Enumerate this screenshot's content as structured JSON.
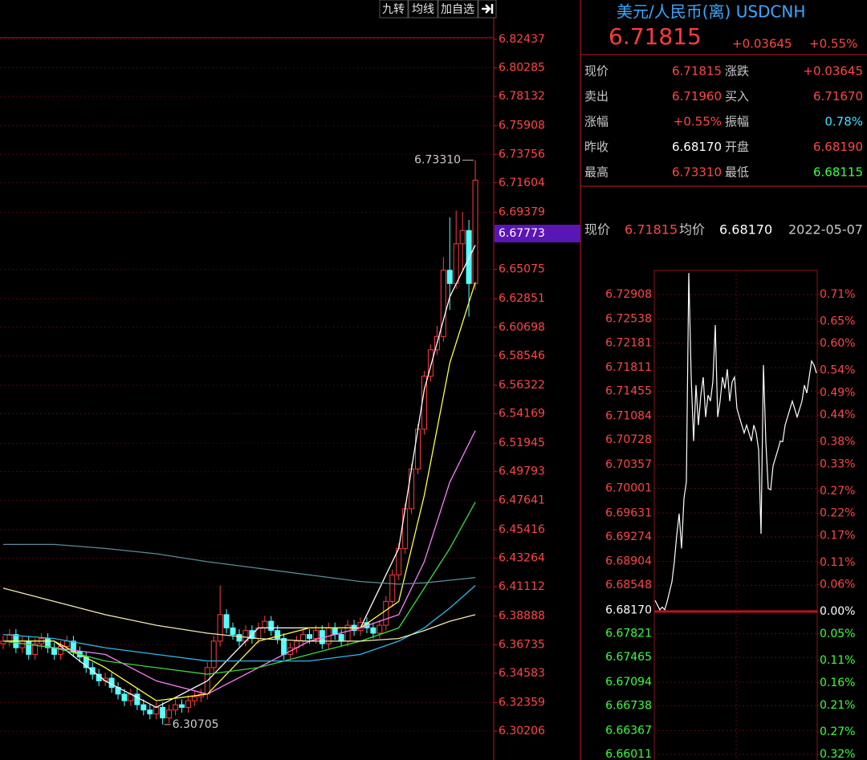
{
  "toolbar": [
    "九转",
    "均线",
    "加自选"
  ],
  "chart_data": [
    {
      "type": "candlestick",
      "xlim": [
        -0.5,
        75
      ],
      "ylim": [
        6.29055,
        6.83588
      ],
      "yticks": [
        6.82437,
        6.80285,
        6.78132,
        6.75908,
        6.73756,
        6.71604,
        6.69379,
        6.65075,
        6.62851,
        6.60698,
        6.58546,
        6.56322,
        6.54169,
        6.51945,
        6.49793,
        6.47641,
        6.45416,
        6.43264,
        6.41112,
        6.38888,
        6.36735,
        6.34583,
        6.32359,
        6.30206
      ],
      "current_value": 6.67773,
      "grid": true,
      "up_color": "#ff3c3c",
      "down_color": "#54ffff",
      "open": [
        6.368,
        6.37,
        6.375,
        6.365,
        6.37,
        6.36,
        6.368,
        6.372,
        6.365,
        6.36,
        6.366,
        6.37,
        6.362,
        6.358,
        6.35,
        6.345,
        6.34,
        6.342,
        6.335,
        6.33,
        6.325,
        6.33,
        6.322,
        6.318,
        6.315,
        6.32,
        6.312,
        6.318,
        6.322,
        6.32,
        6.325,
        6.328,
        6.33,
        6.35,
        6.37,
        6.39,
        6.38,
        6.375,
        6.37,
        6.378,
        6.372,
        6.38,
        6.385,
        6.378,
        6.372,
        6.36,
        6.365,
        6.37,
        6.375,
        6.372,
        6.378,
        6.368,
        6.38,
        6.375,
        6.37,
        6.382,
        6.378,
        6.384,
        6.38,
        6.376,
        6.382,
        6.4,
        6.42,
        6.44,
        6.47,
        6.5,
        6.53,
        6.57,
        6.59,
        6.6,
        6.65,
        6.64,
        6.67,
        6.68,
        6.64
      ],
      "high": [
        6.374,
        6.379,
        6.379,
        6.374,
        6.374,
        6.372,
        6.376,
        6.376,
        6.369,
        6.37,
        6.374,
        6.374,
        6.366,
        6.362,
        6.354,
        6.349,
        6.346,
        6.346,
        6.339,
        6.334,
        6.334,
        6.334,
        6.326,
        6.322,
        6.324,
        6.324,
        6.322,
        6.326,
        6.326,
        6.329,
        6.332,
        6.334,
        6.354,
        6.374,
        6.412,
        6.394,
        6.384,
        6.379,
        6.382,
        6.382,
        6.384,
        6.389,
        6.389,
        6.382,
        6.376,
        6.369,
        6.374,
        6.379,
        6.379,
        6.382,
        6.382,
        6.384,
        6.384,
        6.379,
        6.386,
        6.386,
        6.388,
        6.388,
        6.384,
        6.386,
        6.404,
        6.424,
        6.444,
        6.474,
        6.504,
        6.534,
        6.574,
        6.594,
        6.608,
        6.66,
        6.69,
        6.695,
        6.694,
        6.688,
        6.7331
      ],
      "low": [
        6.364,
        6.366,
        6.361,
        6.361,
        6.356,
        6.356,
        6.364,
        6.361,
        6.356,
        6.356,
        6.362,
        6.358,
        6.354,
        6.346,
        6.341,
        6.336,
        6.336,
        6.331,
        6.326,
        6.321,
        6.321,
        6.318,
        6.314,
        6.311,
        6.311,
        6.30705,
        6.308,
        6.314,
        6.316,
        6.316,
        6.321,
        6.324,
        6.326,
        6.346,
        6.366,
        6.376,
        6.371,
        6.366,
        6.366,
        6.368,
        6.368,
        6.376,
        6.374,
        6.368,
        6.356,
        6.356,
        6.361,
        6.366,
        6.368,
        6.368,
        6.364,
        6.364,
        6.371,
        6.366,
        6.366,
        6.374,
        6.374,
        6.376,
        6.372,
        6.372,
        6.378,
        6.396,
        6.416,
        6.436,
        6.466,
        6.496,
        6.526,
        6.566,
        6.586,
        6.596,
        6.62,
        6.636,
        6.65,
        6.615,
        6.635
      ],
      "close": [
        6.37,
        6.375,
        6.365,
        6.37,
        6.36,
        6.368,
        6.372,
        6.365,
        6.36,
        6.366,
        6.37,
        6.362,
        6.358,
        6.35,
        6.345,
        6.34,
        6.342,
        6.335,
        6.33,
        6.325,
        6.33,
        6.322,
        6.318,
        6.315,
        6.32,
        6.312,
        6.318,
        6.322,
        6.32,
        6.325,
        6.328,
        6.33,
        6.35,
        6.37,
        6.39,
        6.38,
        6.375,
        6.37,
        6.378,
        6.372,
        6.38,
        6.385,
        6.378,
        6.372,
        6.36,
        6.365,
        6.37,
        6.375,
        6.372,
        6.378,
        6.368,
        6.38,
        6.375,
        6.37,
        6.382,
        6.378,
        6.384,
        6.38,
        6.376,
        6.382,
        6.4,
        6.42,
        6.44,
        6.47,
        6.5,
        6.53,
        6.57,
        6.59,
        6.6,
        6.65,
        6.64,
        6.67,
        6.68,
        6.64,
        6.718
      ],
      "annotations": [
        {
          "value": 6.7331,
          "label": "6.73310"
        },
        {
          "value": 6.30705,
          "label": "6.30705"
        }
      ],
      "series": [
        {
          "color": "#ffffff",
          "x": [
            0,
            8,
            16,
            24,
            32,
            40,
            48,
            56,
            62,
            66,
            70,
            74
          ],
          "values": [
            6.37,
            6.37,
            6.34,
            6.32,
            6.34,
            6.38,
            6.38,
            6.38,
            6.44,
            6.56,
            6.63,
            6.669
          ]
        },
        {
          "color": "#ffff3c",
          "x": [
            0,
            8,
            16,
            24,
            32,
            40,
            48,
            56,
            62,
            66,
            70,
            74
          ],
          "values": [
            6.37,
            6.37,
            6.35,
            6.325,
            6.33,
            6.37,
            6.38,
            6.38,
            6.4,
            6.48,
            6.58,
            6.641
          ]
        },
        {
          "color": "#ff7cff",
          "x": [
            0,
            8,
            16,
            24,
            32,
            40,
            48,
            56,
            62,
            66,
            70,
            74
          ],
          "values": [
            6.37,
            6.365,
            6.36,
            6.34,
            6.33,
            6.35,
            6.37,
            6.38,
            6.39,
            6.43,
            6.49,
            6.529
          ]
        },
        {
          "color": "#3cd83c",
          "x": [
            0,
            8,
            16,
            24,
            32,
            40,
            48,
            56,
            62,
            66,
            70,
            74
          ],
          "values": [
            6.37,
            6.365,
            6.355,
            6.35,
            6.345,
            6.35,
            6.36,
            6.37,
            6.38,
            6.41,
            6.44,
            6.475
          ]
        },
        {
          "color": "#2fb8e8",
          "x": [
            0,
            8,
            16,
            24,
            32,
            40,
            48,
            56,
            62,
            66,
            70,
            74
          ],
          "values": [
            6.375,
            6.372,
            6.365,
            6.36,
            6.355,
            6.355,
            6.355,
            6.36,
            6.37,
            6.38,
            6.395,
            6.412
          ]
        },
        {
          "color": "#5a8c98",
          "x": [
            0,
            8,
            16,
            24,
            32,
            40,
            48,
            56,
            62,
            66,
            70,
            74
          ],
          "values": [
            6.443,
            6.443,
            6.44,
            6.436,
            6.43,
            6.425,
            6.42,
            6.415,
            6.413,
            6.414,
            6.416,
            6.418
          ]
        },
        {
          "color": "#f2eab4",
          "x": [
            0,
            8,
            16,
            24,
            32,
            40,
            48,
            56,
            62,
            66,
            70,
            74
          ],
          "values": [
            6.41,
            6.4,
            6.39,
            6.382,
            6.376,
            6.372,
            6.37,
            6.37,
            6.372,
            6.378,
            6.385,
            6.39
          ]
        }
      ]
    },
    {
      "type": "line",
      "color": "#ffffff",
      "ylim": [
        6.65927,
        6.73269
      ],
      "yticks": [
        6.72908,
        6.72538,
        6.72181,
        6.71811,
        6.71455,
        6.71084,
        6.70728,
        6.70357,
        6.70001,
        6.69631,
        6.69274,
        6.68904,
        6.68548,
        {
          "value": 6.6817,
          "label": "6.68170"
        },
        6.67821,
        6.67465,
        6.67094,
        6.66738,
        6.66367,
        6.66011
      ],
      "y2lim": [
        -0.3326,
        0.7639
      ],
      "y2ticks": [
        {
          "value": 0.71,
          "label": "0.71%"
        },
        {
          "value": 0.65,
          "label": "0.65%"
        },
        {
          "value": 0.6,
          "label": "0.60%"
        },
        {
          "value": 0.54,
          "label": "0.54%"
        },
        {
          "value": 0.49,
          "label": "0.49%"
        },
        {
          "value": 0.44,
          "label": "0.44%"
        },
        {
          "value": 0.38,
          "label": "0.38%"
        },
        {
          "value": 0.33,
          "label": "0.33%"
        },
        {
          "value": 0.27,
          "label": "0.27%"
        },
        {
          "value": 0.22,
          "label": "0.22%"
        },
        {
          "value": 0.17,
          "label": "0.17%"
        },
        {
          "value": 0.11,
          "label": "0.11%"
        },
        {
          "value": 0.06,
          "label": "0.06%"
        },
        {
          "value": 0,
          "label": "0.00%"
        },
        {
          "value": -0.05,
          "label": "0.05%"
        },
        {
          "value": -0.11,
          "label": "0.11%"
        },
        {
          "value": -0.16,
          "label": "0.16%"
        },
        {
          "value": -0.21,
          "label": "0.21%"
        },
        {
          "value": -0.27,
          "label": "0.27%"
        },
        {
          "value": -0.32,
          "label": "0.32%"
        }
      ],
      "values": [
        6.6832,
        6.6825,
        6.6818,
        6.6822,
        6.6818,
        6.683,
        6.6845,
        6.686,
        6.689,
        6.693,
        6.6962,
        6.691,
        6.6985,
        6.701,
        6.7323,
        6.7167,
        6.7071,
        6.7155,
        6.7095,
        6.714,
        6.7167,
        6.7107,
        6.714,
        6.7131,
        6.716,
        6.7245,
        6.7107,
        6.7131,
        6.7167,
        6.715,
        6.7179,
        6.7131,
        6.716,
        6.7167,
        6.712,
        6.7107,
        6.7095,
        6.7083,
        6.7095,
        6.7083,
        6.7071,
        6.7095,
        6.7083,
        6.7058,
        6.6932,
        6.7185,
        6.707,
        6.7,
        6.6998,
        6.7034,
        6.7046,
        6.7058,
        6.7071,
        6.707,
        6.7095,
        6.7107,
        6.7119,
        6.7131,
        6.7119,
        6.7107,
        6.7119,
        6.7131,
        6.7155,
        6.7143,
        6.7167,
        6.7191,
        6.7185,
        6.7173
      ]
    }
  ],
  "quote": {
    "title": "美元/人民币(离) USDCNH",
    "price": "6.71815",
    "change": "+0.03645",
    "change_pct": "+0.55%",
    "rows": [
      [
        "现价",
        "6.71815",
        "涨跌",
        "+0.03645"
      ],
      [
        "卖出",
        "6.71960",
        "买入",
        "6.71670"
      ],
      [
        "涨幅",
        "+0.55%",
        "振幅",
        "0.78%"
      ],
      [
        "昨收",
        "6.68170",
        "开盘",
        "6.68190"
      ],
      [
        "最高",
        "6.73310",
        "最低",
        "6.68115"
      ]
    ],
    "status": [
      "现价",
      "6.71815",
      "均价",
      "6.68170",
      "2022-05-07"
    ]
  }
}
